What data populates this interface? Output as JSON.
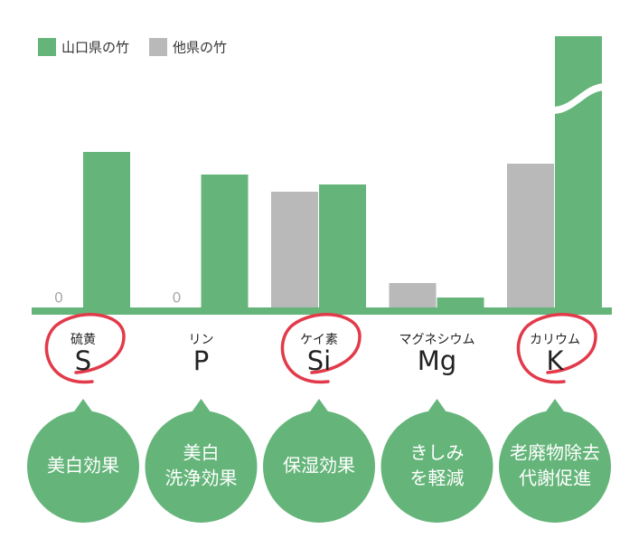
{
  "chart_data": {
    "type": "bar",
    "categories": [
      "S",
      "P",
      "Si",
      "Mg",
      "K"
    ],
    "category_names": [
      "硫黄",
      "リン",
      "ケイ素",
      "マグネシウム",
      "カリウム"
    ],
    "series": [
      {
        "name": "他県の竹",
        "color": "#b9b9b9",
        "values": [
          0,
          0,
          131,
          30,
          162
        ]
      },
      {
        "name": "山口県の竹",
        "color": "#65b57a",
        "values": [
          175,
          150,
          139,
          14,
          303
        ]
      }
    ],
    "ylim": [
      0,
      303
    ],
    "axis_break_category": 4,
    "highlighted": [
      true,
      false,
      true,
      false,
      true
    ],
    "highlight_color": "#e23a4a",
    "effects": [
      [
        "美白効果"
      ],
      [
        "美白",
        "洗浄効果"
      ],
      [
        "保湿効果"
      ],
      [
        "きしみ",
        "を軽減"
      ],
      [
        "老廃物除去",
        "代謝促進"
      ]
    ]
  }
}
